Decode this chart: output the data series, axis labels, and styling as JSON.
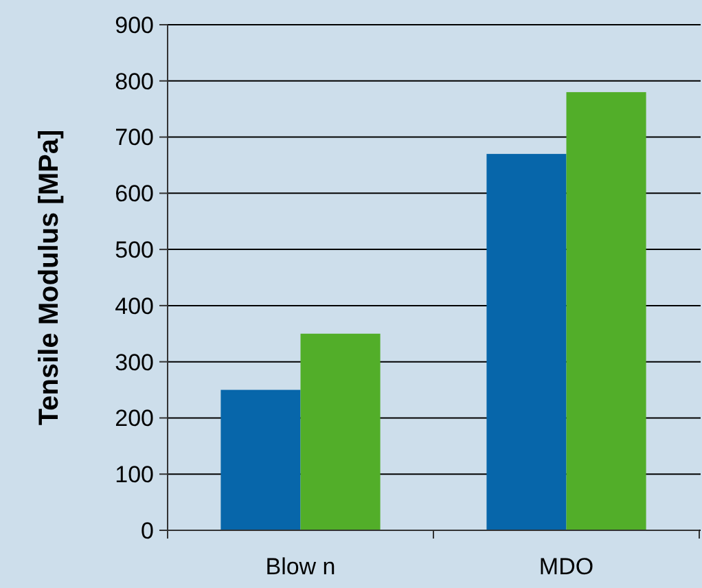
{
  "chart_data": {
    "type": "bar",
    "ylabel": "Tensile Modulus [MPa]",
    "categories": [
      "Blow n",
      "MDO"
    ],
    "series": [
      {
        "color": "#0766aa",
        "values": [
          250,
          670
        ]
      },
      {
        "color": "#52ae29",
        "values": [
          350,
          780
        ]
      }
    ],
    "ylim": [
      0,
      900
    ],
    "yticks": [
      0,
      100,
      200,
      300,
      400,
      500,
      600,
      700,
      800,
      900
    ],
    "grid": "y"
  }
}
